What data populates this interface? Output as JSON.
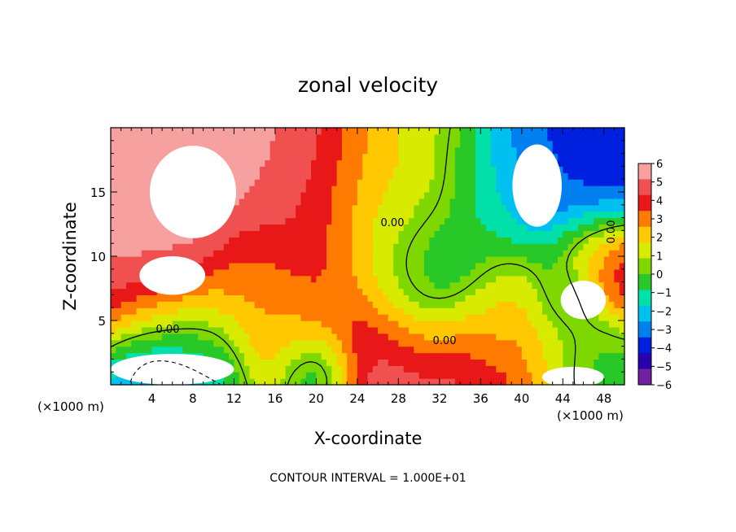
{
  "chart_data": {
    "type": "heatmap",
    "title": "zonal velocity",
    "xlabel": "X-coordinate",
    "ylabel": "Z-coordinate",
    "x_unit": "(×1000 m)",
    "z_unit": "(×1000 m)",
    "xlim": [
      0,
      50
    ],
    "ylim": [
      0,
      20
    ],
    "x_ticks": [
      4,
      8,
      12,
      16,
      20,
      24,
      28,
      32,
      36,
      40,
      44,
      48
    ],
    "y_ticks": [
      5,
      10,
      15
    ],
    "colorbar": {
      "levels": [
        6,
        5,
        4,
        3,
        2,
        1,
        0,
        -1,
        -2,
        -3,
        -4,
        -5,
        -6
      ],
      "colors": [
        "#f7a0a0",
        "#f05050",
        "#e81818",
        "#ff7a00",
        "#ffc800",
        "#d8ea00",
        "#7ed800",
        "#28c828",
        "#00e0a8",
        "#00c0f0",
        "#0080f0",
        "#0020e0",
        "#2800b0",
        "#7020a0"
      ]
    },
    "contour_labels": [
      "0.00",
      "0.00",
      "0.00",
      "0.00"
    ],
    "footer": "CONTOUR INTERVAL = 1.000E+01",
    "features": [
      {
        "x": 17,
        "z": 16,
        "u": 5.5,
        "r": 9
      },
      {
        "x": 6,
        "z": 14,
        "u": 6,
        "r": 5
      },
      {
        "x": 22,
        "z": 10,
        "u": 3,
        "r": 7
      },
      {
        "x": 30,
        "z": 17,
        "u": 0.5,
        "r": 8
      },
      {
        "x": 27,
        "z": 13,
        "u": 1,
        "r": 5
      },
      {
        "x": 38,
        "z": 15,
        "u": -2,
        "r": 5
      },
      {
        "x": 41,
        "z": 18,
        "u": -5,
        "r": 5
      },
      {
        "x": 45,
        "z": 14,
        "u": -4.5,
        "r": 5
      },
      {
        "x": 32,
        "z": 8,
        "u": -3.5,
        "r": 5
      },
      {
        "x": 46,
        "z": 10,
        "u": 3,
        "r": 3
      },
      {
        "x": 49,
        "z": 9,
        "u": 5,
        "r": 3
      },
      {
        "x": 5,
        "z": 7,
        "u": 5,
        "r": 5
      },
      {
        "x": 8,
        "z": 3,
        "u": -2,
        "r": 5
      },
      {
        "x": 5,
        "z": 1,
        "u": -5,
        "r": 4
      },
      {
        "x": 26,
        "z": 2,
        "u": 5,
        "r": 6
      },
      {
        "x": 34,
        "z": 2,
        "u": 5,
        "r": 5
      },
      {
        "x": 42,
        "z": 4,
        "u": 3,
        "r": 6
      },
      {
        "x": 46,
        "z": 2,
        "u": -2,
        "r": 4
      },
      {
        "x": 18,
        "z": 4,
        "u": 1.5,
        "r": 4
      },
      {
        "x": 14,
        "z": 8,
        "u": 2,
        "r": 4
      },
      {
        "x": 38,
        "z": 6,
        "u": 1,
        "r": 4
      },
      {
        "x": 44,
        "z": 7,
        "u": -3,
        "r": 3
      },
      {
        "x": 20,
        "z": 1,
        "u": -4,
        "r": 3
      },
      {
        "x": 28,
        "z": 10,
        "u": -1.5,
        "r": 4
      }
    ],
    "masked_regions": [
      {
        "x": 8,
        "z": 15,
        "rx": 4.2,
        "rz": 3.6
      },
      {
        "x": 6,
        "z": 8.5,
        "rx": 3.2,
        "rz": 1.5
      },
      {
        "x": 41.5,
        "z": 15.5,
        "rx": 2.4,
        "rz": 3.2
      },
      {
        "x": 46,
        "z": 6.6,
        "rx": 2.2,
        "rz": 1.5
      },
      {
        "x": 6,
        "z": 1.2,
        "rx": 6,
        "rz": 1.2
      },
      {
        "x": 45,
        "z": 0.6,
        "rx": 3,
        "rz": 0.8
      }
    ]
  }
}
